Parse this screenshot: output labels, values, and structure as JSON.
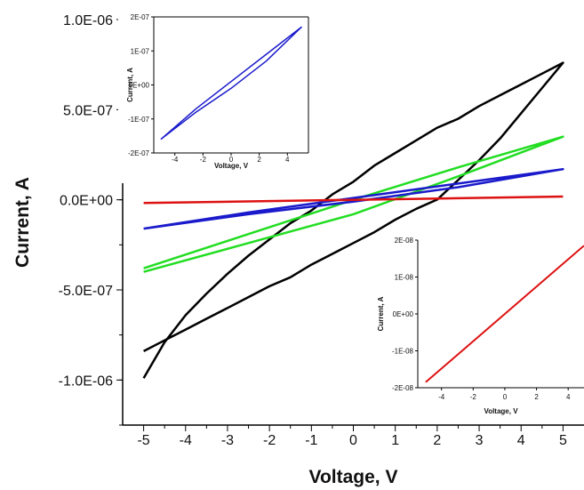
{
  "chart_data": [
    {
      "type": "line",
      "xlabel": "Voltage, V",
      "ylabel": "Current, A",
      "xlim": [
        -5.5,
        5.5
      ],
      "ylim": [
        -1.25e-06,
        1e-06
      ],
      "x_ticks": [
        -5,
        -4,
        -3,
        -2,
        -1,
        0,
        1,
        2,
        3,
        4,
        5
      ],
      "x_tick_labels": [
        "-5",
        "-4",
        "-3",
        "-2",
        "-1",
        "0",
        "1",
        "2",
        "3",
        "4",
        "5"
      ],
      "y_ticks": [
        1e-06,
        5e-07,
        0,
        -5e-07,
        -1e-06
      ],
      "y_tick_labels": [
        "1.0E-06",
        "5.0E-07",
        "0.0E+00",
        "-5.0E-07",
        "-1.0E-06"
      ],
      "grid": false,
      "series": [
        {
          "color": "#000000",
          "points": [
            [
              -5,
              -9.9e-07
            ],
            [
              -4.5,
              -7.9e-07
            ],
            [
              -4,
              -6.4e-07
            ],
            [
              -3.5,
              -5.2e-07
            ],
            [
              -3,
              -4.1e-07
            ],
            [
              -2.5,
              -3.1e-07
            ],
            [
              -2,
              -2.2e-07
            ],
            [
              -1.5,
              -1.3e-07
            ],
            [
              -1,
              -6e-08
            ],
            [
              -0.5,
              3e-08
            ],
            [
              0,
              1e-07
            ],
            [
              0.5,
              1.9e-07
            ],
            [
              1,
              2.6e-07
            ],
            [
              1.5,
              3.3e-07
            ],
            [
              2,
              4e-07
            ],
            [
              2.5,
              4.5e-07
            ],
            [
              3,
              5.2e-07
            ],
            [
              3.5,
              5.8e-07
            ],
            [
              4,
              6.4e-07
            ],
            [
              4.5,
              7e-07
            ],
            [
              5,
              7.6e-07
            ],
            [
              4.5,
              6.2e-07
            ],
            [
              4,
              4.8e-07
            ],
            [
              3.5,
              3.4e-07
            ],
            [
              3,
              2.2e-07
            ],
            [
              2.5,
              1.1e-07
            ],
            [
              2,
              1.5e-09
            ],
            [
              1.5,
              -5e-08
            ],
            [
              1,
              -1.1e-07
            ],
            [
              0.5,
              -1.8e-07
            ],
            [
              0,
              -2.4e-07
            ],
            [
              -0.5,
              -3e-07
            ],
            [
              -1,
              -3.6e-07
            ],
            [
              -1.5,
              -4.3e-07
            ],
            [
              -2,
              -4.8e-07
            ],
            [
              -2.5,
              -5.4e-07
            ],
            [
              -3,
              -6e-07
            ],
            [
              -3.5,
              -6.6e-07
            ],
            [
              -4,
              -7.2e-07
            ],
            [
              -4.5,
              -7.8e-07
            ],
            [
              -5,
              -8.4e-07
            ]
          ]
        },
        {
          "color": "#22dd22",
          "points": [
            [
              -5,
              -3.8e-07
            ],
            [
              -2.5,
              -1.9e-07
            ],
            [
              0,
              0
            ],
            [
              2.5,
              1.8e-07
            ],
            [
              5,
              3.5e-07
            ],
            [
              2.5,
              1.3e-07
            ],
            [
              0,
              -8e-08
            ],
            [
              -2.5,
              -2.4e-07
            ],
            [
              -5,
              -4e-07
            ]
          ]
        },
        {
          "color": "#1a1acc",
          "points": [
            [
              -5,
              -1.6e-07
            ],
            [
              -2.5,
              -7e-08
            ],
            [
              0,
              1e-08
            ],
            [
              2.5,
              9e-08
            ],
            [
              5,
              1.7e-07
            ],
            [
              2.5,
              7e-08
            ],
            [
              0,
              -1e-08
            ],
            [
              -2.5,
              -8e-08
            ],
            [
              -5,
              -1.6e-07
            ]
          ]
        },
        {
          "color": "#dd1111",
          "points": [
            [
              -5,
              -1.8e-08
            ],
            [
              0,
              0
            ],
            [
              5,
              1.8e-08
            ]
          ]
        }
      ]
    },
    {
      "type": "line",
      "xlabel": "Voltage, V",
      "ylabel": "Current, A",
      "xlim": [
        -5.5,
        5.5
      ],
      "ylim": [
        -2e-07,
        2e-07
      ],
      "x_ticks": [
        -4,
        -2,
        0,
        2,
        4
      ],
      "x_tick_labels": [
        "-4",
        "-2",
        "0",
        "2",
        "4"
      ],
      "y_ticks": [
        2e-07,
        1e-07,
        0,
        -1e-07,
        -2e-07
      ],
      "y_tick_labels": [
        "2E-07",
        "1E-07",
        "0E+00",
        "-1E-07",
        "-2E-07"
      ],
      "series": [
        {
          "color": "#1a1acc",
          "points": [
            [
              -5,
              -1.6e-07
            ],
            [
              -2.5,
              -7e-08
            ],
            [
              0,
              1e-08
            ],
            [
              2.5,
              9e-08
            ],
            [
              5,
              1.7e-07
            ],
            [
              2.5,
              7e-08
            ],
            [
              0,
              -1e-08
            ],
            [
              -2.5,
              -8e-08
            ],
            [
              -5,
              -1.6e-07
            ]
          ]
        }
      ]
    },
    {
      "type": "line",
      "xlabel": "Voltage, V",
      "ylabel": "Current, A",
      "xlim": [
        -5.5,
        5.0
      ],
      "ylim": [
        -2e-08,
        2e-08
      ],
      "x_ticks": [
        -4,
        -2,
        0,
        2,
        4
      ],
      "x_tick_labels": [
        "-4",
        "-2",
        "0",
        "2",
        "4"
      ],
      "y_ticks": [
        2e-08,
        1e-08,
        0,
        -1e-08,
        -2e-08
      ],
      "y_tick_labels": [
        "2E-08",
        "1E-08",
        "0E+00",
        "-1E-08",
        "-2E-08"
      ],
      "series": [
        {
          "color": "#dd1111",
          "points": [
            [
              -5,
              -1.85e-08
            ],
            [
              5,
              1.85e-08
            ]
          ]
        }
      ]
    }
  ]
}
